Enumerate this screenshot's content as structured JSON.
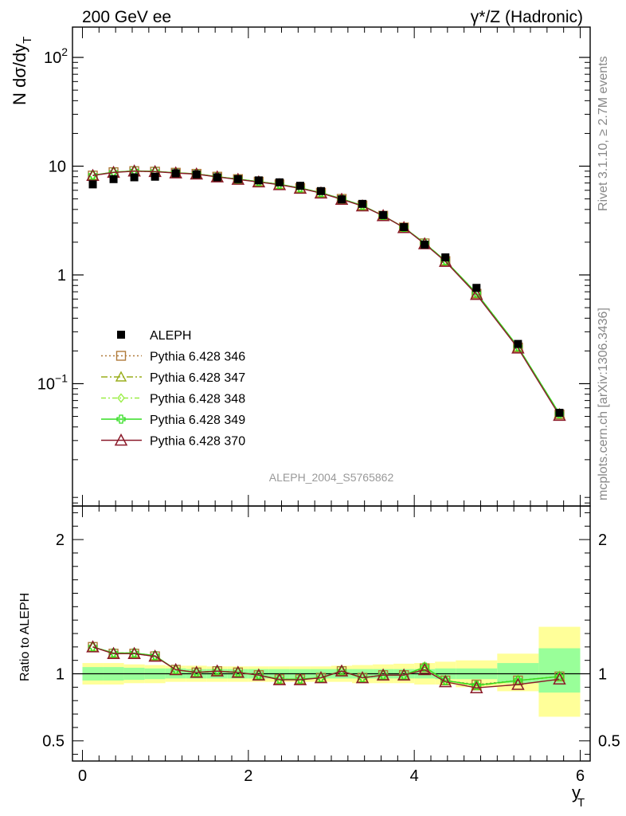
{
  "header": {
    "left_title": "200 GeV ee",
    "right_title": "γ*/Z (Hadronic)"
  },
  "side_labels": {
    "rivet": "Rivet 3.1.10, ≥ 2.7M events",
    "mcplots": "mcplots.cern.ch [arXiv:1306.3436]"
  },
  "watermark": "ALEPH_2004_S5765862",
  "chart_data": [
    {
      "type": "scatter",
      "title": "",
      "xlabel": "y_T",
      "ylabel": "N dσ/dy_T",
      "yscale": "log",
      "xlim": [
        -0.12,
        6.12
      ],
      "ylim": [
        0.0075,
        190
      ],
      "y_ticks": [
        {
          "value": 0.1,
          "label": "10",
          "exp": "−1"
        },
        {
          "value": 1,
          "label": "1",
          "exp": ""
        },
        {
          "value": 10,
          "label": "10",
          "exp": ""
        },
        {
          "value": 100,
          "label": "10",
          "exp": "2"
        }
      ],
      "legend_position": "left-middle",
      "x": [
        0.125,
        0.375,
        0.625,
        0.875,
        1.125,
        1.375,
        1.625,
        1.875,
        2.125,
        2.375,
        2.625,
        2.875,
        3.125,
        3.375,
        3.625,
        3.875,
        4.125,
        4.375,
        4.75,
        5.25,
        5.75
      ],
      "data": {
        "name": "ALEPH",
        "y": [
          6.8,
          7.6,
          7.9,
          8.0,
          8.6,
          8.4,
          7.9,
          7.6,
          7.4,
          7.1,
          6.6,
          5.9,
          4.95,
          4.5,
          3.55,
          2.75,
          1.9,
          1.45,
          0.76,
          0.232,
          0.054
        ]
      },
      "series": [
        {
          "name": "Pythia 6.428 346",
          "color": "#b07a3a",
          "marker": "square",
          "dash": "2,3",
          "y": [
            8.2,
            8.8,
            9.0,
            8.9,
            8.7,
            8.5,
            8.0,
            7.6,
            7.2,
            6.8,
            6.3,
            5.7,
            5.0,
            4.35,
            3.5,
            2.73,
            1.95,
            1.34,
            0.67,
            0.215,
            0.052
          ]
        },
        {
          "name": "Pythia 6.428 347",
          "color": "#9aae1c",
          "marker": "triangle",
          "dash": "8,3,2,3",
          "y": [
            8.25,
            8.8,
            9.05,
            8.95,
            8.7,
            8.5,
            8.0,
            7.6,
            7.2,
            6.8,
            6.3,
            5.7,
            5.0,
            4.35,
            3.5,
            2.73,
            1.96,
            1.35,
            0.68,
            0.218,
            0.053
          ]
        },
        {
          "name": "Pythia 6.428 348",
          "color": "#99ee44",
          "marker": "diamond",
          "dash": "6,3,2,3",
          "y": [
            8.25,
            8.8,
            9.05,
            8.95,
            8.7,
            8.5,
            8.0,
            7.6,
            7.2,
            6.8,
            6.3,
            5.7,
            5.0,
            4.35,
            3.5,
            2.73,
            1.96,
            1.35,
            0.68,
            0.218,
            0.053
          ]
        },
        {
          "name": "Pythia 6.428 349",
          "color": "#33dd22",
          "marker": "cross",
          "dash": "",
          "y": [
            8.25,
            8.8,
            9.05,
            8.95,
            8.7,
            8.5,
            8.0,
            7.6,
            7.2,
            6.8,
            6.3,
            5.7,
            5.0,
            4.35,
            3.5,
            2.73,
            1.96,
            1.35,
            0.68,
            0.218,
            0.053
          ]
        },
        {
          "name": "Pythia 6.428 370",
          "color": "#8b1a2a",
          "marker": "triangle-open",
          "dash": "",
          "y": [
            8.2,
            8.75,
            9.0,
            8.9,
            8.65,
            8.45,
            7.95,
            7.55,
            7.15,
            6.75,
            6.25,
            5.65,
            4.95,
            4.3,
            3.5,
            2.72,
            1.93,
            1.33,
            0.66,
            0.212,
            0.051
          ]
        }
      ]
    },
    {
      "type": "line",
      "title": "",
      "xlabel": "y_T",
      "ylabel": "Ratio to ALEPH",
      "ylim": [
        0.35,
        2.25
      ],
      "y_ticks": [
        0.5,
        1,
        2
      ],
      "x_ticks": [
        0,
        2,
        4,
        6
      ],
      "x": [
        0.125,
        0.375,
        0.625,
        0.875,
        1.125,
        1.375,
        1.625,
        1.875,
        2.125,
        2.375,
        2.625,
        2.875,
        3.125,
        3.375,
        3.625,
        3.875,
        4.125,
        4.375,
        4.75,
        5.25,
        5.75
      ],
      "bins": [
        [
          0,
          0.25
        ],
        [
          0.25,
          0.5
        ],
        [
          0.5,
          0.75
        ],
        [
          0.75,
          1.0
        ],
        [
          1.0,
          1.25
        ],
        [
          1.25,
          1.5
        ],
        [
          1.5,
          1.75
        ],
        [
          1.75,
          2.0
        ],
        [
          2.0,
          2.25
        ],
        [
          2.25,
          2.5
        ],
        [
          2.5,
          2.75
        ],
        [
          2.75,
          3.0
        ],
        [
          3.0,
          3.25
        ],
        [
          3.25,
          3.5
        ],
        [
          3.5,
          3.75
        ],
        [
          3.75,
          4.0
        ],
        [
          4.0,
          4.25
        ],
        [
          4.25,
          4.5
        ],
        [
          4.5,
          5.0
        ],
        [
          5.0,
          5.5
        ],
        [
          5.5,
          6.0
        ]
      ],
      "band_stat": [
        [
          0.95,
          1.05
        ],
        [
          0.95,
          1.05
        ],
        [
          0.955,
          1.045
        ],
        [
          0.96,
          1.04
        ],
        [
          0.965,
          1.04
        ],
        [
          0.965,
          1.035
        ],
        [
          0.965,
          1.035
        ],
        [
          0.965,
          1.035
        ],
        [
          0.965,
          1.035
        ],
        [
          0.965,
          1.035
        ],
        [
          0.965,
          1.035
        ],
        [
          0.965,
          1.035
        ],
        [
          0.965,
          1.035
        ],
        [
          0.965,
          1.035
        ],
        [
          0.965,
          1.035
        ],
        [
          0.965,
          1.035
        ],
        [
          0.965,
          1.035
        ],
        [
          0.96,
          1.04
        ],
        [
          0.96,
          1.04
        ],
        [
          0.93,
          1.08
        ],
        [
          0.86,
          1.19
        ]
      ],
      "band_total": [
        [
          0.92,
          1.08
        ],
        [
          0.92,
          1.08
        ],
        [
          0.93,
          1.07
        ],
        [
          0.93,
          1.065
        ],
        [
          0.94,
          1.06
        ],
        [
          0.94,
          1.06
        ],
        [
          0.94,
          1.055
        ],
        [
          0.94,
          1.055
        ],
        [
          0.94,
          1.055
        ],
        [
          0.94,
          1.055
        ],
        [
          0.94,
          1.055
        ],
        [
          0.94,
          1.055
        ],
        [
          0.94,
          1.06
        ],
        [
          0.93,
          1.065
        ],
        [
          0.93,
          1.07
        ],
        [
          0.93,
          1.075
        ],
        [
          0.92,
          1.08
        ],
        [
          0.92,
          1.09
        ],
        [
          0.9,
          1.1
        ],
        [
          0.87,
          1.15
        ],
        [
          0.68,
          1.35
        ]
      ],
      "series": [
        {
          "name": "Pythia 6.428 346",
          "y": [
            1.2,
            1.15,
            1.15,
            1.13,
            1.03,
            1.01,
            1.02,
            1.01,
            0.99,
            0.96,
            0.96,
            0.97,
            1.02,
            0.97,
            0.99,
            0.99,
            1.04,
            0.95,
            0.92,
            0.95,
            0.98
          ]
        },
        {
          "name": "Pythia 6.428 347",
          "y": [
            1.2,
            1.155,
            1.155,
            1.135,
            1.03,
            1.01,
            1.02,
            1.01,
            0.99,
            0.96,
            0.96,
            0.97,
            1.02,
            0.97,
            0.99,
            0.99,
            1.05,
            0.95,
            0.91,
            0.95,
            0.98
          ]
        },
        {
          "name": "Pythia 6.428 348",
          "y": [
            1.2,
            1.155,
            1.155,
            1.135,
            1.03,
            1.01,
            1.02,
            1.01,
            0.99,
            0.96,
            0.96,
            0.97,
            1.02,
            0.97,
            0.99,
            0.99,
            1.05,
            0.95,
            0.91,
            0.95,
            0.98
          ]
        },
        {
          "name": "Pythia 6.428 349",
          "y": [
            1.2,
            1.155,
            1.155,
            1.135,
            1.03,
            1.01,
            1.02,
            1.01,
            0.99,
            0.96,
            0.96,
            0.97,
            1.02,
            0.97,
            0.99,
            0.99,
            1.05,
            0.95,
            0.915,
            0.95,
            0.98
          ]
        },
        {
          "name": "Pythia 6.428 370",
          "y": [
            1.2,
            1.15,
            1.15,
            1.13,
            1.03,
            1.01,
            1.02,
            1.01,
            0.99,
            0.955,
            0.955,
            0.97,
            1.02,
            0.97,
            0.99,
            0.99,
            1.03,
            0.94,
            0.895,
            0.92,
            0.96
          ]
        }
      ]
    }
  ],
  "legend": {
    "data_label": "ALEPH",
    "items": [
      "Pythia 6.428 346",
      "Pythia 6.428 347",
      "Pythia 6.428 348",
      "Pythia 6.428 349",
      "Pythia 6.428 370"
    ]
  },
  "axes": {
    "top_ylabel_main": "N dσ/dy",
    "top_ylabel_sub": "T",
    "ratio_ylabel": "Ratio to ALEPH",
    "xlabel_main": "y",
    "xlabel_sub": "T"
  },
  "colors": {
    "band_stat": "#99ff99",
    "band_total": "#ffff99",
    "data": "#000000"
  }
}
